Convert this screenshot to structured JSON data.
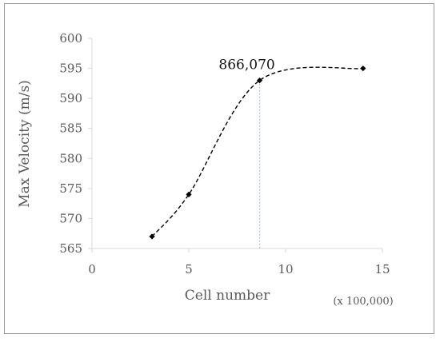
{
  "chart_data": {
    "type": "scatter",
    "title": "",
    "xlabel": "Cell number",
    "ylabel": "Max Velocity (m/s)",
    "x_unit_label": "(x 100,000)",
    "xlim": [
      0,
      15
    ],
    "ylim": [
      565,
      600
    ],
    "x_ticks": [
      0,
      5,
      10,
      15
    ],
    "y_ticks": [
      565,
      570,
      575,
      580,
      585,
      590,
      595,
      600
    ],
    "series": [
      {
        "x": [
          3.1,
          5.0,
          8.66,
          14.0
        ],
        "y": [
          567,
          574,
          593,
          595
        ]
      }
    ],
    "smoothed_line": true,
    "line_style": "dashed",
    "grid": false,
    "legend": "none",
    "annotations": [
      {
        "text": "866,070",
        "x": 8.6607,
        "y": 593
      }
    ],
    "colors": {
      "series": "#000000",
      "reference_line": "#9dc3e6",
      "axis": "#d9d9d9"
    }
  }
}
